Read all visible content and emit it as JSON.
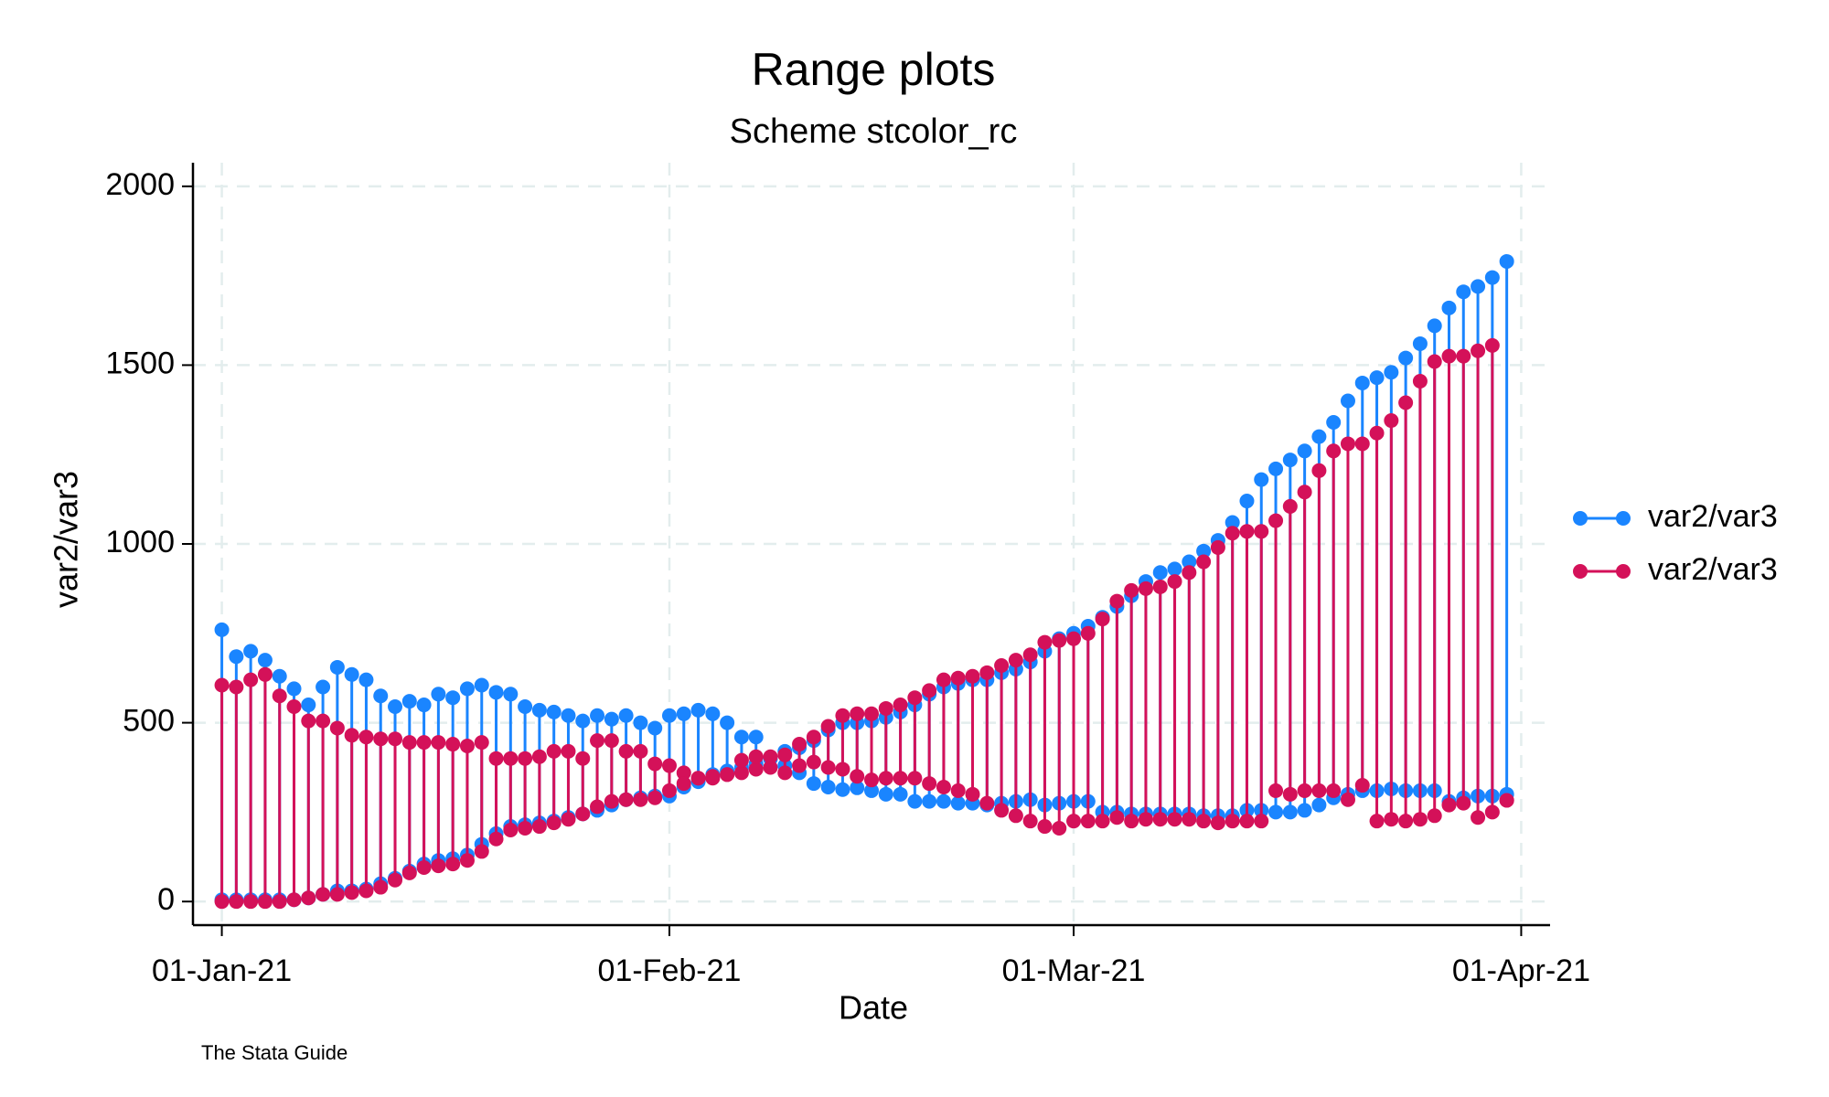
{
  "chart_data": {
    "type": "range_cap",
    "title": "Range plots",
    "subtitle": "Scheme stcolor_rc",
    "x_label": "Date",
    "y_label": "var2/var3",
    "note": "The Stata Guide",
    "x": [
      "2021-01-01",
      "2021-01-02",
      "2021-01-03",
      "2021-01-04",
      "2021-01-05",
      "2021-01-06",
      "2021-01-07",
      "2021-01-08",
      "2021-01-09",
      "2021-01-10",
      "2021-01-11",
      "2021-01-12",
      "2021-01-13",
      "2021-01-14",
      "2021-01-15",
      "2021-01-16",
      "2021-01-17",
      "2021-01-18",
      "2021-01-19",
      "2021-01-20",
      "2021-01-21",
      "2021-01-22",
      "2021-01-23",
      "2021-01-24",
      "2021-01-25",
      "2021-01-26",
      "2021-01-27",
      "2021-01-28",
      "2021-01-29",
      "2021-01-30",
      "2021-01-31",
      "2021-02-01",
      "2021-02-02",
      "2021-02-03",
      "2021-02-04",
      "2021-02-05",
      "2021-02-06",
      "2021-02-07",
      "2021-02-08",
      "2021-02-09",
      "2021-02-10",
      "2021-02-11",
      "2021-02-12",
      "2021-02-13",
      "2021-02-14",
      "2021-02-15",
      "2021-02-16",
      "2021-02-17",
      "2021-02-18",
      "2021-02-19",
      "2021-02-20",
      "2021-02-21",
      "2021-02-22",
      "2021-02-23",
      "2021-02-24",
      "2021-02-25",
      "2021-02-26",
      "2021-02-27",
      "2021-02-28",
      "2021-03-01",
      "2021-03-02",
      "2021-03-03",
      "2021-03-04",
      "2021-03-05",
      "2021-03-06",
      "2021-03-07",
      "2021-03-08",
      "2021-03-09",
      "2021-03-10",
      "2021-03-11",
      "2021-03-12",
      "2021-03-13",
      "2021-03-14",
      "2021-03-15",
      "2021-03-16",
      "2021-03-17",
      "2021-03-18",
      "2021-03-19",
      "2021-03-20",
      "2021-03-21",
      "2021-03-22",
      "2021-03-23",
      "2021-03-24",
      "2021-03-25",
      "2021-03-26",
      "2021-03-27",
      "2021-03-28",
      "2021-03-29",
      "2021-03-30",
      "2021-03-31"
    ],
    "series": [
      {
        "name": "var2/var3",
        "color": "#1a85ff",
        "y1": [
          760,
          685,
          700,
          675,
          630,
          595,
          550,
          600,
          655,
          635,
          620,
          575,
          545,
          560,
          550,
          580,
          570,
          595,
          605,
          585,
          580,
          545,
          535,
          530,
          520,
          505,
          520,
          510,
          520,
          500,
          485,
          520,
          525,
          535,
          525,
          500,
          460,
          460,
          400,
          380,
          360,
          330,
          320,
          313,
          318,
          310,
          300,
          300,
          280,
          280,
          280,
          275,
          275,
          270,
          275,
          280,
          285,
          270,
          275,
          280,
          280,
          250,
          250,
          245,
          245,
          245,
          245,
          245,
          240,
          240,
          240,
          255,
          255,
          250,
          250,
          255,
          270,
          290,
          300,
          310,
          310,
          315,
          310,
          310,
          310,
          280,
          290,
          295,
          295,
          300
        ],
        "y2": [
          5,
          5,
          5,
          5,
          5,
          5,
          10,
          20,
          30,
          30,
          35,
          50,
          65,
          85,
          105,
          115,
          120,
          130,
          160,
          190,
          210,
          215,
          220,
          225,
          235,
          245,
          255,
          270,
          285,
          290,
          295,
          295,
          320,
          335,
          355,
          365,
          375,
          385,
          400,
          420,
          430,
          450,
          480,
          500,
          500,
          505,
          515,
          530,
          550,
          580,
          600,
          610,
          620,
          620,
          640,
          650,
          670,
          700,
          735,
          750,
          770,
          795,
          825,
          855,
          895,
          920,
          930,
          950,
          980,
          1010,
          1060,
          1120,
          1180,
          1210,
          1235,
          1260,
          1300,
          1340,
          1400,
          1450,
          1465,
          1480,
          1520,
          1560,
          1610,
          1660,
          1705,
          1720,
          1745,
          1790,
          300
        ]
      },
      {
        "name": "var2/var3",
        "color": "#d41159",
        "y1": [
          605,
          600,
          620,
          635,
          575,
          545,
          505,
          505,
          485,
          465,
          460,
          455,
          455,
          445,
          445,
          445,
          440,
          435,
          445,
          400,
          400,
          400,
          405,
          420,
          420,
          400,
          450,
          450,
          420,
          420,
          385,
          380,
          360,
          345,
          345,
          355,
          360,
          370,
          375,
          360,
          380,
          390,
          375,
          370,
          350,
          340,
          345,
          345,
          345,
          330,
          320,
          310,
          300,
          275,
          255,
          240,
          225,
          210,
          205,
          225,
          225,
          225,
          235,
          225,
          230,
          230,
          230,
          230,
          225,
          220,
          225,
          225,
          225,
          310,
          300,
          310,
          310,
          310,
          285,
          325,
          225,
          230,
          225,
          230,
          240,
          270,
          275,
          235,
          250,
          283
        ],
        "y2": [
          0,
          0,
          0,
          0,
          0,
          5,
          10,
          20,
          20,
          25,
          30,
          40,
          60,
          80,
          95,
          100,
          105,
          115,
          140,
          175,
          200,
          205,
          210,
          220,
          230,
          245,
          265,
          280,
          285,
          285,
          290,
          310,
          330,
          345,
          350,
          355,
          395,
          405,
          405,
          410,
          440,
          460,
          490,
          520,
          525,
          525,
          540,
          550,
          570,
          590,
          620,
          625,
          630,
          640,
          660,
          675,
          690,
          725,
          730,
          735,
          750,
          790,
          840,
          870,
          875,
          880,
          895,
          920,
          950,
          990,
          1030,
          1035,
          1035,
          1065,
          1105,
          1145,
          1205,
          1260,
          1280,
          1280,
          1310,
          1345,
          1395,
          1455,
          1510,
          1525,
          1525,
          1540,
          1555,
          283
        ]
      }
    ],
    "xlim": [
      "2020-12-30",
      "2021-04-03"
    ],
    "xticks": [
      {
        "value": "2021-01-01",
        "label": "01-Jan-21"
      },
      {
        "value": "2021-02-01",
        "label": "01-Feb-21"
      },
      {
        "value": "2021-03-01",
        "label": "01-Mar-21"
      },
      {
        "value": "2021-04-01",
        "label": "01-Apr-21"
      }
    ],
    "ylim": [
      -66,
      2066
    ],
    "yticks": [
      0,
      500,
      1000,
      1500,
      2000
    ],
    "grid": true,
    "legend": "right"
  }
}
